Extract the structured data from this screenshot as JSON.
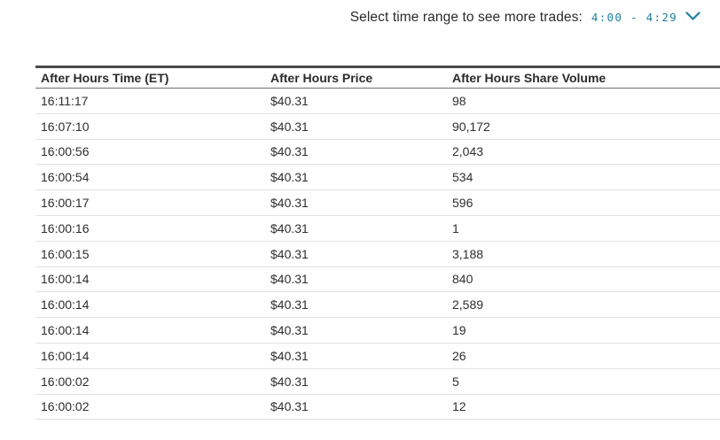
{
  "controls": {
    "label": "Select time range to see more trades:",
    "selected_range": "4:00 - 4:29",
    "accent_color": "#1c7f9f"
  },
  "table": {
    "columns": {
      "time": "After Hours Time (ET)",
      "price": "After Hours Price",
      "volume": "After Hours Share Volume"
    },
    "rows": [
      [
        "16:11:17",
        "$40.31",
        "98"
      ],
      [
        "16:07:10",
        "$40.31",
        "90,172"
      ],
      [
        "16:00:56",
        "$40.31",
        "2,043"
      ],
      [
        "16:00:54",
        "$40.31",
        "534"
      ],
      [
        "16:00:17",
        "$40.31",
        "596"
      ],
      [
        "16:00:16",
        "$40.31",
        "1"
      ],
      [
        "16:00:15",
        "$40.31",
        "3,188"
      ],
      [
        "16:00:14",
        "$40.31",
        "840"
      ],
      [
        "16:00:14",
        "$40.31",
        "2,589"
      ],
      [
        "16:00:14",
        "$40.31",
        "19"
      ],
      [
        "16:00:14",
        "$40.31",
        "26"
      ],
      [
        "16:00:02",
        "$40.31",
        "5"
      ],
      [
        "16:00:02",
        "$40.31",
        "12"
      ]
    ]
  }
}
